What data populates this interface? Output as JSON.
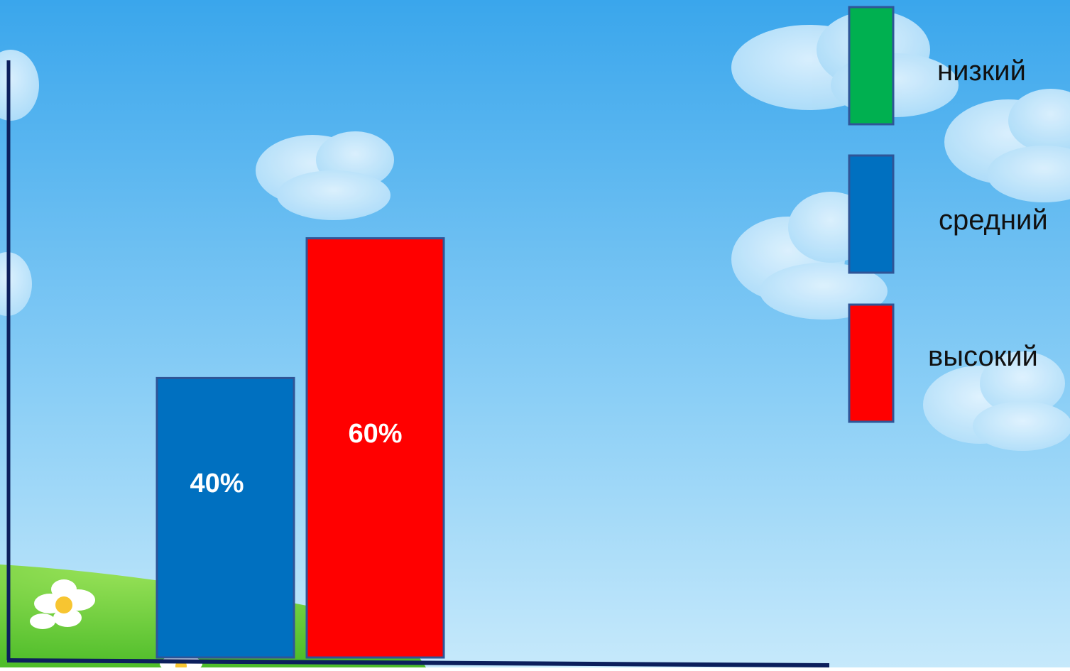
{
  "chart_data": {
    "type": "bar",
    "categories": [
      "средний",
      "высокий"
    ],
    "values": [
      40,
      60
    ],
    "data_labels": [
      "40%",
      "60%"
    ],
    "bar_colors": [
      "#0070c0",
      "#ff0000"
    ],
    "ylim": [
      0,
      100
    ],
    "title": "",
    "xlabel": "",
    "ylabel": "",
    "grid": false,
    "legend_position": "top-right",
    "legend": [
      {
        "label": "низкий",
        "color": "#00b050"
      },
      {
        "label": "средний",
        "color": "#0070c0"
      },
      {
        "label": "высокий",
        "color": "#ff0000"
      }
    ]
  },
  "colors": {
    "sky_top": "#3aa6ec",
    "sky_bottom": "#bfe6fb",
    "grass": "#6fd23a",
    "axis": "#0c1f5c",
    "bar_border": "#2f5597",
    "label_text": "#ffffff"
  },
  "decor": {
    "background": "sky-with-clouds",
    "flower_icon": "daisy-icon"
  }
}
